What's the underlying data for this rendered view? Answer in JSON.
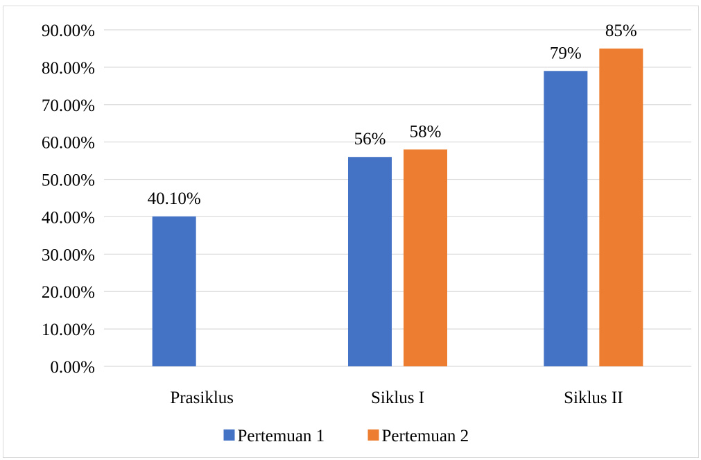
{
  "chart_data": {
    "type": "bar",
    "categories": [
      "Prasiklus",
      "Siklus I",
      "Siklus II"
    ],
    "series": [
      {
        "name": "Pertemuan 1",
        "color": "#4472c4",
        "values": [
          40.1,
          56,
          79
        ],
        "labels": [
          "40.10%",
          "56%",
          "79%"
        ]
      },
      {
        "name": "Pertemuan 2",
        "color": "#ed7d31",
        "values": [
          null,
          58,
          85
        ],
        "labels": [
          "",
          "58%",
          "85%"
        ]
      }
    ],
    "y_ticks": [
      "0.00%",
      "10.00%",
      "20.00%",
      "30.00%",
      "40.00%",
      "50.00%",
      "60.00%",
      "70.00%",
      "80.00%",
      "90.00%"
    ],
    "ylim": [
      0,
      90
    ],
    "grid": true,
    "legend_position": "bottom",
    "gridline_color": "#d9d9d9"
  }
}
